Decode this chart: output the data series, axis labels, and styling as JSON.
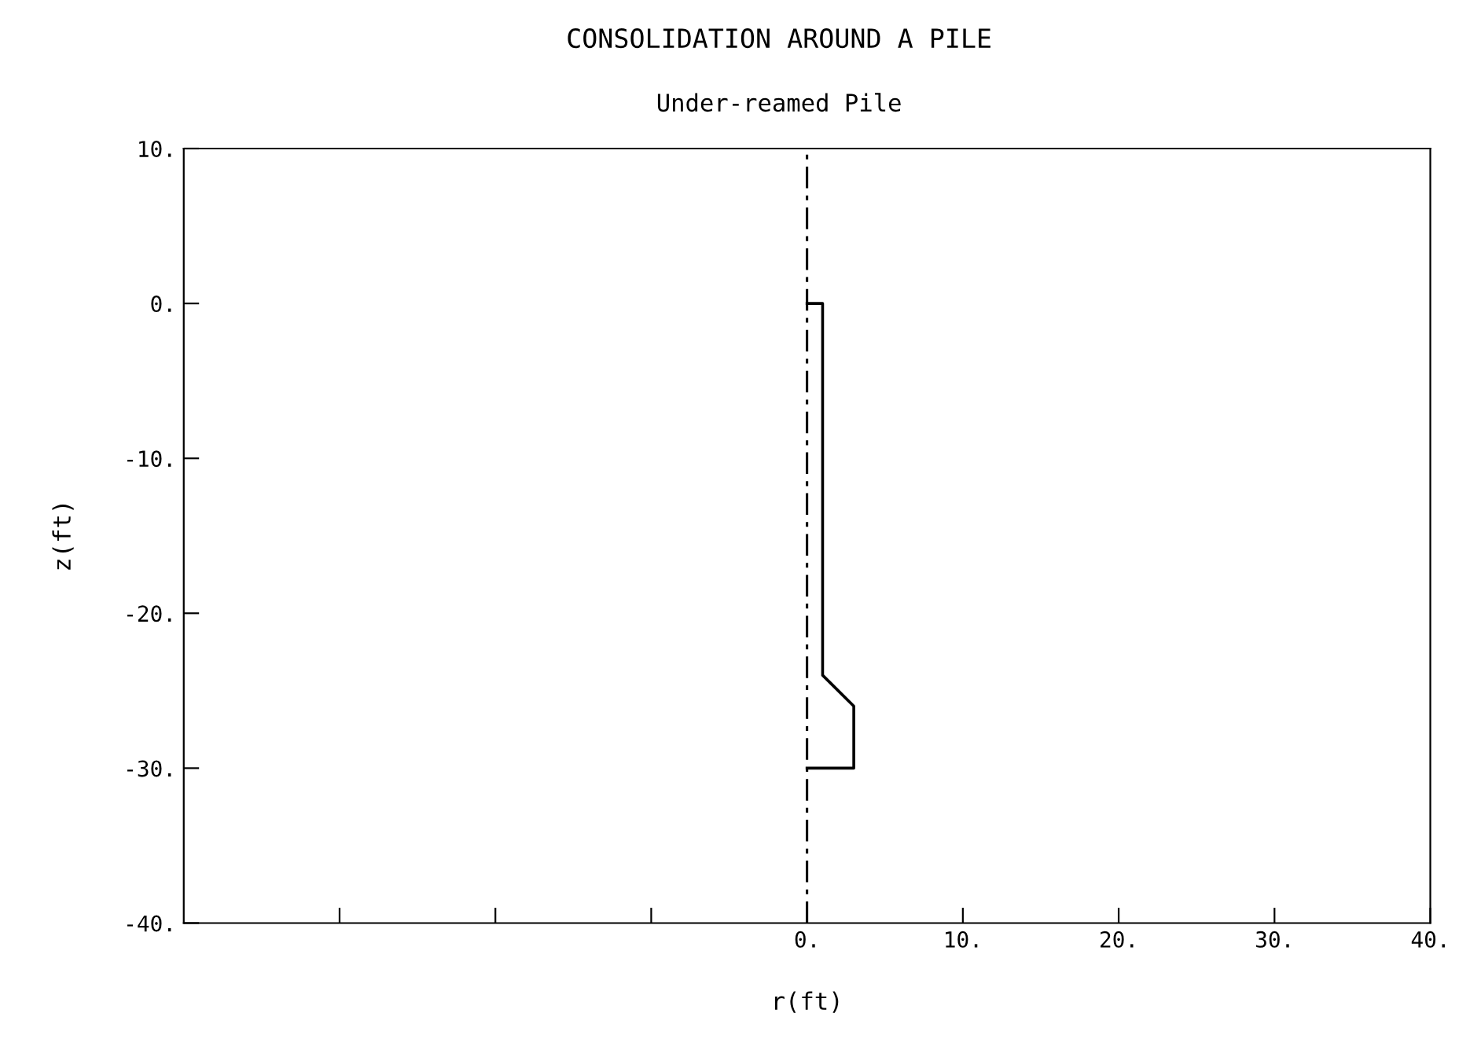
{
  "chart_data": {
    "type": "line",
    "title": "CONSOLIDATION AROUND A PILE",
    "subtitle": "Under-reamed Pile",
    "xlabel": "r(ft)",
    "ylabel": "z(ft)",
    "series": [
      {
        "x": [
          0,
          1,
          1,
          3,
          3,
          0
        ],
        "values": [
          0,
          0,
          -24,
          -26,
          -30,
          -30
        ],
        "color": "#000000"
      }
    ],
    "xlim": [
      -40,
      40
    ],
    "ylim": [
      -40,
      10
    ],
    "xticks": [
      {
        "value": -30,
        "label": null
      },
      {
        "value": -20,
        "label": null
      },
      {
        "value": -10,
        "label": null
      },
      {
        "value": 0,
        "label": "0."
      },
      {
        "value": 10,
        "label": "10."
      },
      {
        "value": 20,
        "label": "20."
      },
      {
        "value": 30,
        "label": "30."
      },
      {
        "value": 40,
        "label": "40."
      }
    ],
    "yticks": [
      {
        "value": -40,
        "label": "-40."
      },
      {
        "value": -30,
        "label": "-30."
      },
      {
        "value": -20,
        "label": "-20."
      },
      {
        "value": -10,
        "label": "-10."
      },
      {
        "value": 0,
        "label": "0."
      },
      {
        "value": 10,
        "label": "10."
      }
    ],
    "ref_lines": [
      {
        "axis": "x",
        "value": 0,
        "label": null,
        "color": "#000000",
        "line_style": "dashed"
      }
    ],
    "grid": false,
    "legend": false,
    "marker": "none",
    "line_style": "solid"
  }
}
